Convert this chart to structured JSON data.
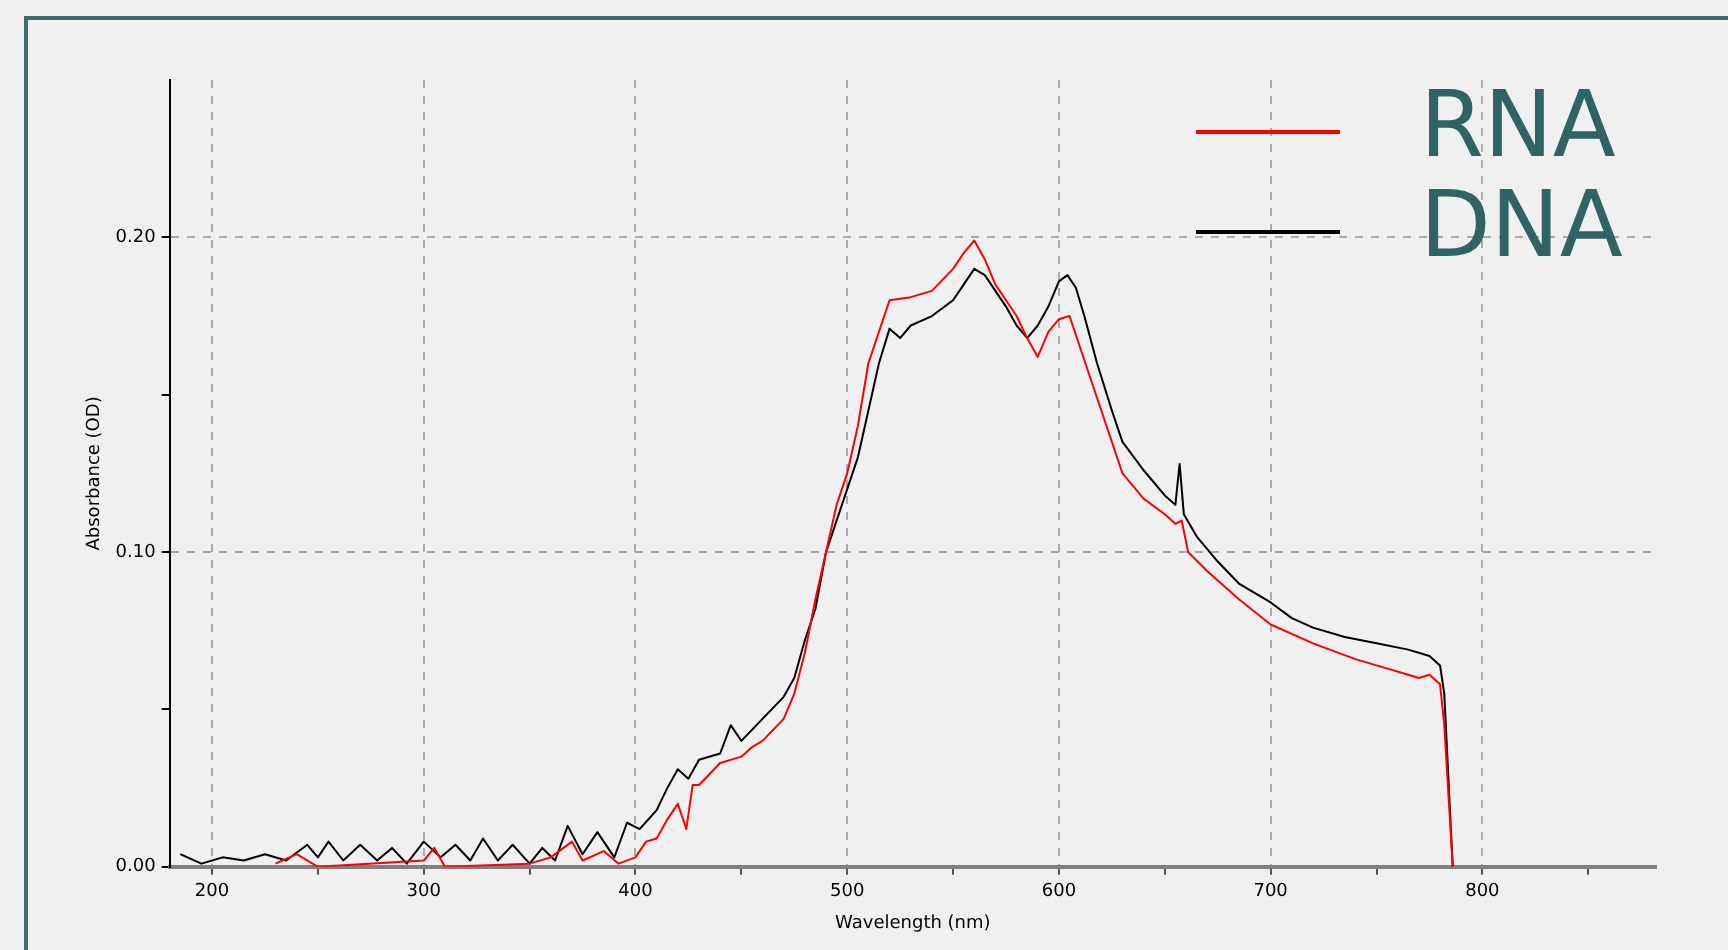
{
  "chart_data": {
    "type": "line",
    "xlabel": "Wavelength (nm)",
    "ylabel": "Absorbance (OD)",
    "xlim": [
      180,
      882
    ],
    "xticks": [
      200,
      {
        "value": 250,
        "label": null
      },
      300,
      {
        "value": 350,
        "label": null
      },
      400,
      {
        "value": 450,
        "label": null
      },
      500,
      {
        "value": 550,
        "label": null
      },
      600,
      {
        "value": 650,
        "label": null
      },
      700,
      {
        "value": 750,
        "label": null
      },
      800,
      {
        "value": 850,
        "label": null
      }
    ],
    "ylim": [
      0,
      0.25
    ],
    "yticks": [
      {
        "value": 0,
        "label": "0.00"
      },
      {
        "value": 0.05,
        "label": null
      },
      {
        "value": 0.1,
        "label": "0.10"
      },
      {
        "value": 0.15,
        "label": null
      },
      {
        "value": 0.2,
        "label": "0.20"
      }
    ],
    "grid": true,
    "legend": "top right",
    "marker": "none",
    "line_style": "solid",
    "series": [
      {
        "name": "RNA",
        "color": "#ff0000",
        "x": [
          230,
          240,
          250,
          300,
          305,
          310,
          350,
          360,
          370,
          375,
          385,
          392,
          400,
          405,
          410,
          415,
          420,
          424,
          427,
          430,
          440,
          450,
          455,
          460,
          470,
          475,
          480,
          485,
          490,
          495,
          500,
          505,
          510,
          515,
          520,
          530,
          540,
          550,
          555,
          560,
          565,
          570,
          575,
          580,
          585,
          590,
          595,
          600,
          605,
          610,
          615,
          620,
          630,
          640,
          650,
          655,
          658,
          661,
          670,
          685,
          700,
          720,
          740,
          750,
          765,
          770,
          775,
          780,
          782,
          786
        ],
        "values": [
          0.001,
          0.004,
          0.0,
          0.002,
          0.006,
          0.0,
          0.001,
          0.003,
          0.008,
          0.002,
          0.005,
          0.001,
          0.003,
          0.008,
          0.009,
          0.015,
          0.02,
          0.012,
          0.026,
          0.026,
          0.033,
          0.035,
          0.038,
          0.04,
          0.047,
          0.055,
          0.068,
          0.085,
          0.1,
          0.115,
          0.125,
          0.14,
          0.16,
          0.17,
          0.18,
          0.181,
          0.183,
          0.19,
          0.195,
          0.199,
          0.193,
          0.185,
          0.18,
          0.175,
          0.168,
          0.162,
          0.17,
          0.174,
          0.175,
          0.165,
          0.155,
          0.145,
          0.125,
          0.117,
          0.112,
          0.109,
          0.11,
          0.1,
          0.094,
          0.085,
          0.077,
          0.071,
          0.066,
          0.064,
          0.061,
          0.06,
          0.061,
          0.058,
          0.045,
          0.0
        ]
      },
      {
        "name": "DNA",
        "color": "#000000",
        "x": [
          185,
          195,
          205,
          215,
          225,
          235,
          245,
          250,
          255,
          262,
          270,
          278,
          285,
          292,
          300,
          308,
          315,
          322,
          328,
          335,
          342,
          350,
          356,
          362,
          368,
          375,
          382,
          390,
          396,
          402,
          410,
          415,
          420,
          425,
          430,
          440,
          445,
          450,
          460,
          470,
          475,
          480,
          485,
          490,
          495,
          500,
          505,
          510,
          515,
          520,
          525,
          530,
          540,
          550,
          555,
          560,
          565,
          570,
          575,
          580,
          585,
          590,
          595,
          600,
          604,
          608,
          612,
          618,
          625,
          630,
          640,
          650,
          655,
          657,
          659,
          665,
          675,
          685,
          700,
          710,
          720,
          735,
          750,
          765,
          775,
          780,
          782,
          786
        ],
        "values": [
          0.004,
          0.001,
          0.003,
          0.002,
          0.004,
          0.002,
          0.007,
          0.003,
          0.008,
          0.002,
          0.007,
          0.002,
          0.006,
          0.001,
          0.008,
          0.003,
          0.007,
          0.002,
          0.009,
          0.002,
          0.007,
          0.001,
          0.006,
          0.002,
          0.013,
          0.004,
          0.011,
          0.003,
          0.014,
          0.012,
          0.018,
          0.025,
          0.031,
          0.028,
          0.034,
          0.036,
          0.045,
          0.04,
          0.047,
          0.054,
          0.06,
          0.072,
          0.082,
          0.1,
          0.11,
          0.12,
          0.13,
          0.145,
          0.16,
          0.171,
          0.168,
          0.172,
          0.175,
          0.18,
          0.185,
          0.19,
          0.188,
          0.183,
          0.178,
          0.172,
          0.168,
          0.172,
          0.178,
          0.186,
          0.188,
          0.184,
          0.175,
          0.16,
          0.145,
          0.135,
          0.126,
          0.118,
          0.115,
          0.128,
          0.112,
          0.105,
          0.097,
          0.09,
          0.084,
          0.079,
          0.076,
          0.073,
          0.071,
          0.069,
          0.067,
          0.064,
          0.055,
          0.0
        ]
      }
    ]
  }
}
